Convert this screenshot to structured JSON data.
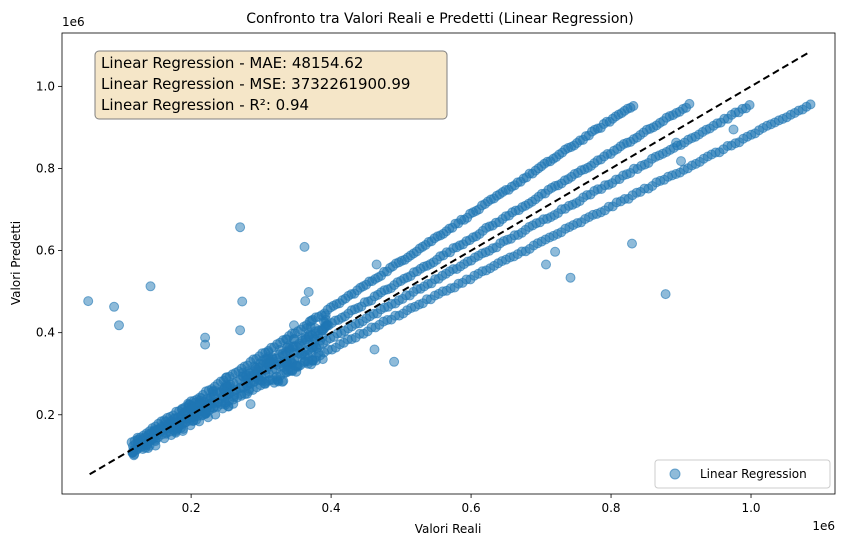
{
  "chart_data": {
    "type": "scatter",
    "title": "Confronto tra Valori Reali e Predetti (Linear Regression)",
    "xlabel": "Valori Reali",
    "ylabel": "Valori Predetti",
    "x_offset_label": "1e6",
    "y_offset_label": "1e6",
    "xlim": [
      0.0155,
      1.12
    ],
    "ylim": [
      0.007,
      1.13
    ],
    "x_ticks": [
      {
        "value": 0.2,
        "label": "0.2"
      },
      {
        "value": 0.4,
        "label": "0.4"
      },
      {
        "value": 0.6,
        "label": "0.6"
      },
      {
        "value": 0.8,
        "label": "0.8"
      },
      {
        "value": 1.0,
        "label": "1.0"
      }
    ],
    "y_ticks": [
      {
        "value": 0.2,
        "label": "0.2"
      },
      {
        "value": 0.4,
        "label": "0.4"
      },
      {
        "value": 0.6,
        "label": "0.6"
      },
      {
        "value": 0.8,
        "label": "0.8"
      },
      {
        "value": 1.0,
        "label": "1.0"
      }
    ],
    "grid": false,
    "legend_position": "bottom-right",
    "stats_box": {
      "lines": [
        "Linear Regression - MAE: 48154.62",
        "Linear Regression - MSE: 3732261900.99",
        "Linear Regression - R²: 0.94"
      ],
      "position": "top-left"
    },
    "colors": {
      "points": "#1f77b4",
      "reference_line": "#000000",
      "stats_box_fill": "#f5e6c8",
      "stats_box_edge": "#7f7f7f"
    },
    "reference_line": {
      "style": "dashed",
      "color": "#000000",
      "from": [
        0.055,
        0.055
      ],
      "to": [
        1.085,
        1.085
      ]
    },
    "series": [
      {
        "name": "Linear Regression",
        "type": "scatter",
        "color": "#1f77b4",
        "bands": [
          {
            "x_start": 0.115,
            "x_end": 0.832,
            "y_start": 0.133,
            "y_end": 0.955
          },
          {
            "x_start": 0.12,
            "x_end": 0.912,
            "y_start": 0.13,
            "y_end": 0.955
          },
          {
            "x_start": 0.125,
            "x_end": 0.998,
            "y_start": 0.127,
            "y_end": 0.953
          },
          {
            "x_start": 0.13,
            "x_end": 1.085,
            "y_start": 0.125,
            "y_end": 0.955
          }
        ],
        "outliers": [
          {
            "x": 0.053,
            "y": 0.477
          },
          {
            "x": 0.09,
            "y": 0.463
          },
          {
            "x": 0.097,
            "y": 0.418
          },
          {
            "x": 0.142,
            "y": 0.513
          },
          {
            "x": 0.22,
            "y": 0.388
          },
          {
            "x": 0.22,
            "y": 0.371
          },
          {
            "x": 0.27,
            "y": 0.657
          },
          {
            "x": 0.273,
            "y": 0.476
          },
          {
            "x": 0.27,
            "y": 0.406
          },
          {
            "x": 0.285,
            "y": 0.226
          },
          {
            "x": 0.362,
            "y": 0.609
          },
          {
            "x": 0.363,
            "y": 0.477
          },
          {
            "x": 0.368,
            "y": 0.499
          },
          {
            "x": 0.347,
            "y": 0.418
          },
          {
            "x": 0.462,
            "y": 0.359
          },
          {
            "x": 0.49,
            "y": 0.329
          },
          {
            "x": 0.465,
            "y": 0.566
          },
          {
            "x": 0.707,
            "y": 0.566
          },
          {
            "x": 0.72,
            "y": 0.597
          },
          {
            "x": 0.742,
            "y": 0.534
          },
          {
            "x": 0.83,
            "y": 0.617
          },
          {
            "x": 0.878,
            "y": 0.494
          },
          {
            "x": 0.893,
            "y": 0.863
          },
          {
            "x": 0.9,
            "y": 0.818
          },
          {
            "x": 0.975,
            "y": 0.895
          }
        ]
      }
    ]
  }
}
